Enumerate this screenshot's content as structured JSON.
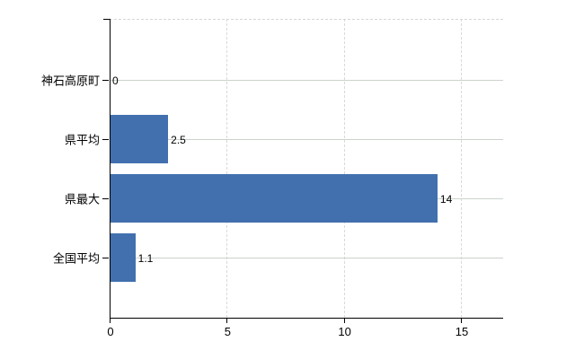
{
  "chart_data": {
    "type": "bar",
    "orientation": "horizontal",
    "title": "",
    "xlabel": "",
    "ylabel": "",
    "categories": [
      "神石高原町",
      "県平均",
      "県最大",
      "全国平均"
    ],
    "values": [
      0,
      2.5,
      14,
      1.1
    ],
    "value_labels": [
      "0",
      "2.5",
      "14",
      "1.1"
    ],
    "x_ticks": [
      0,
      5,
      10,
      15
    ],
    "x_tick_labels": [
      "0",
      "5",
      "10",
      "15"
    ],
    "xlim": [
      0,
      16.8
    ],
    "grid": {
      "vertical": "dashed lines at x ticks 5, 10, 15 and dashed top plot border",
      "horizontal": "solid light lines through each category row center"
    },
    "legend": null,
    "colors": {
      "bar": "#4270af",
      "axis": "#000000",
      "grid_vertical": "#d9d9d9",
      "grid_horizontal": "#cbd3cb",
      "text": "#000000",
      "background": "#ffffff"
    }
  }
}
